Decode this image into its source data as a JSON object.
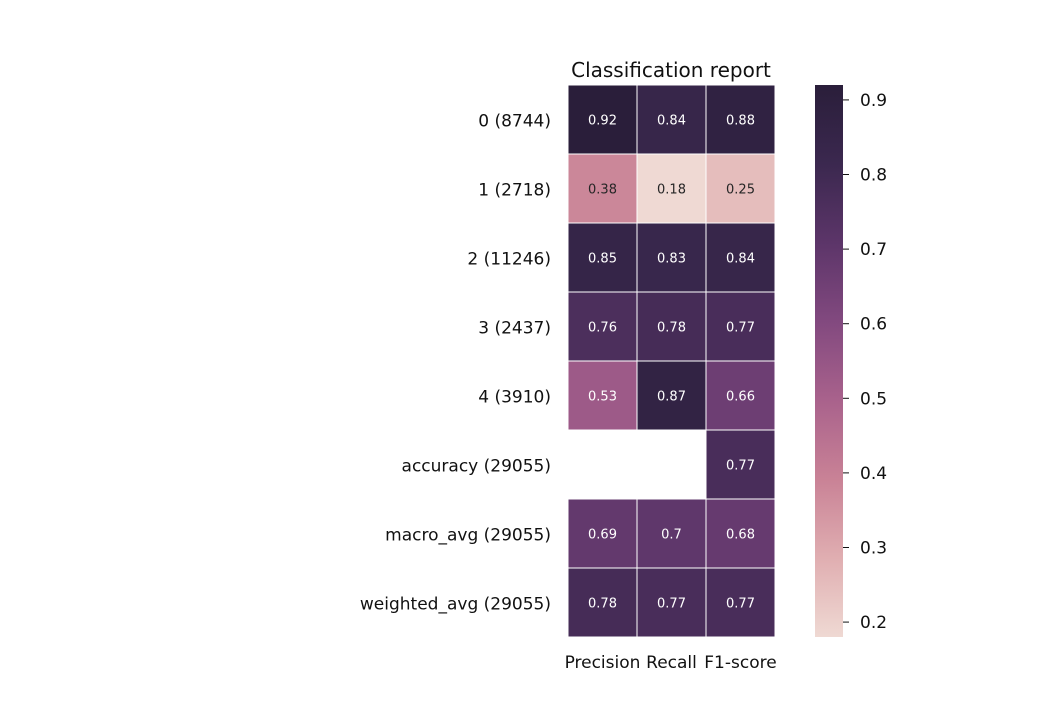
{
  "chart_data": {
    "type": "heatmap",
    "title": "Classification report",
    "columns": [
      "Precision",
      "Recall",
      "F1-score"
    ],
    "rows": [
      "0 (8744)",
      "1 (2718)",
      "2 (11246)",
      "3 (2437)",
      "4 (3910)",
      "accuracy (29055)",
      "macro_avg (29055)",
      "weighted_avg (29055)"
    ],
    "values": [
      [
        0.92,
        0.84,
        0.88
      ],
      [
        0.38,
        0.18,
        0.25
      ],
      [
        0.85,
        0.83,
        0.84
      ],
      [
        0.76,
        0.78,
        0.77
      ],
      [
        0.53,
        0.87,
        0.66
      ],
      [
        null,
        null,
        0.77
      ],
      [
        0.69,
        0.7,
        0.68
      ],
      [
        0.78,
        0.77,
        0.77
      ]
    ],
    "colorbar": {
      "range": [
        0.18,
        0.92
      ],
      "ticks": [
        0.2,
        0.3,
        0.4,
        0.5,
        0.6,
        0.7,
        0.8,
        0.9
      ],
      "colormap": [
        "#efd9d3",
        "#e0aeb1",
        "#c98296",
        "#a9628c",
        "#82497f",
        "#5c3569",
        "#3b284f",
        "#2a1e3a"
      ]
    },
    "cell_border_color": "#ffffff",
    "legend": "right"
  }
}
